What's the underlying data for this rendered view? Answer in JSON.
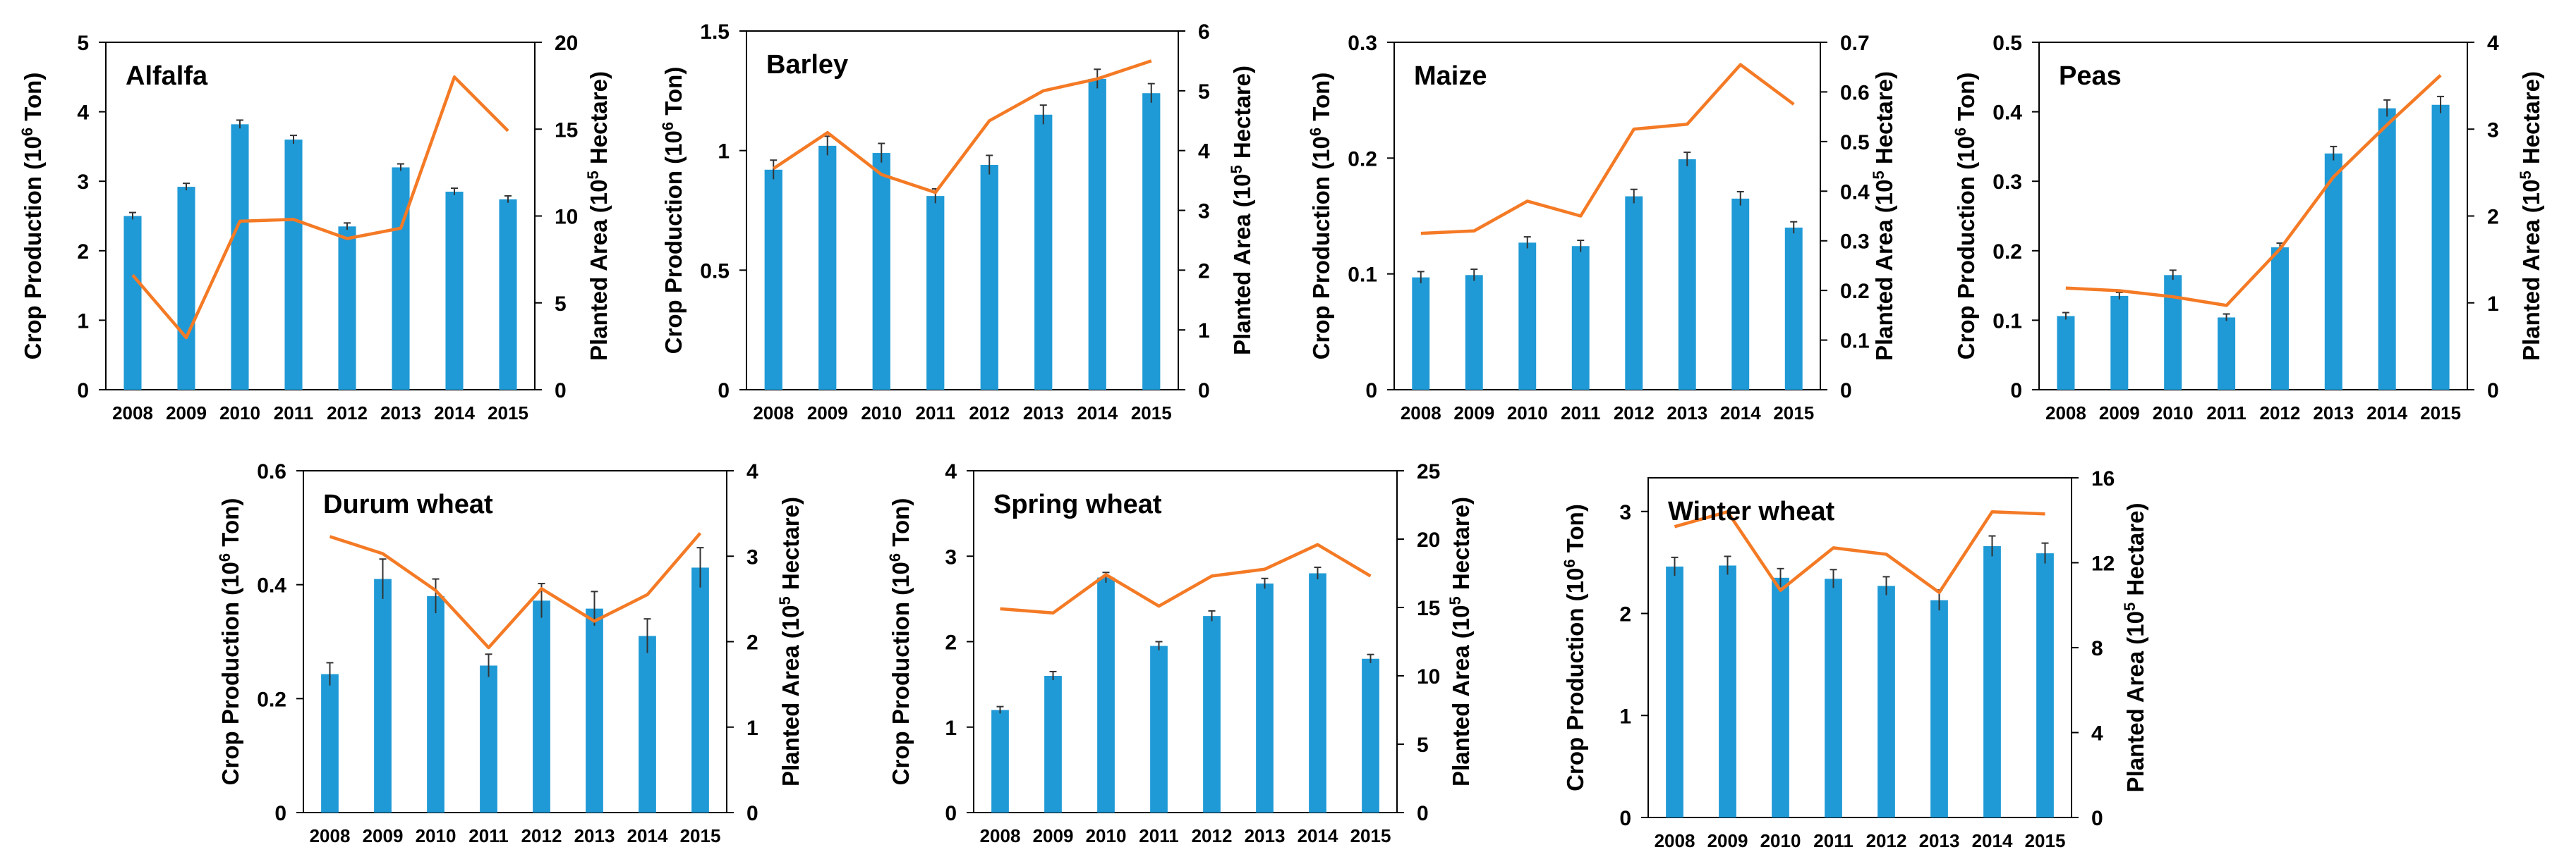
{
  "chart_data": [
    {
      "type": "bar",
      "title": "Alfalfa",
      "categories": [
        "2008",
        "2009",
        "2010",
        "2011",
        "2012",
        "2013",
        "2014",
        "2015"
      ],
      "ylabel_left": {
        "pre": "Crop Production (10",
        "sup": "6",
        "post": " Ton)"
      },
      "ylabel_right": {
        "pre": "Planted Area (10",
        "sup": "5",
        "post": " Hectare)"
      },
      "ylim": [
        0,
        5
      ],
      "yticks": [
        0,
        1,
        2,
        3,
        4,
        5
      ],
      "ytick_labels": [
        "0",
        "1",
        "2",
        "3",
        "4",
        "5"
      ],
      "y2lim": [
        0,
        20
      ],
      "y2ticks": [
        0,
        5,
        10,
        15,
        20
      ],
      "y2tick_labels": [
        "0",
        "5",
        "10",
        "15",
        "20"
      ],
      "series": [
        {
          "name": "Crop Production",
          "kind": "bar",
          "color": "#1f9ad6",
          "values": [
            2.5,
            2.92,
            3.82,
            3.6,
            2.35,
            3.2,
            2.85,
            2.74
          ],
          "errors": [
            0.05,
            0.05,
            0.06,
            0.06,
            0.05,
            0.05,
            0.05,
            0.05
          ]
        },
        {
          "name": "Planted Area",
          "kind": "line",
          "axis": "right",
          "color": "#f47a25",
          "values": [
            6.6,
            3.0,
            9.7,
            9.8,
            8.7,
            9.3,
            18.0,
            14.9
          ]
        }
      ]
    },
    {
      "type": "bar",
      "title": "Barley",
      "categories": [
        "2008",
        "2009",
        "2010",
        "2011",
        "2012",
        "2013",
        "2014",
        "2015"
      ],
      "ylabel_left": {
        "pre": "Crop Production (10",
        "sup": "6",
        "post": " Ton)"
      },
      "ylabel_right": {
        "pre": "Planted Area (10",
        "sup": "5",
        "post": " Hectare)"
      },
      "ylim": [
        0,
        1.5
      ],
      "yticks": [
        0,
        0.5,
        1,
        1.5
      ],
      "ytick_labels": [
        "0",
        "0.5",
        "1",
        "1.5"
      ],
      "y2lim": [
        0,
        6
      ],
      "y2ticks": [
        0,
        1,
        2,
        3,
        4,
        5,
        6
      ],
      "y2tick_labels": [
        "0",
        "1",
        "2",
        "3",
        "4",
        "5",
        "6"
      ],
      "series": [
        {
          "name": "Crop Production",
          "kind": "bar",
          "color": "#1f9ad6",
          "values": [
            0.92,
            1.02,
            0.99,
            0.81,
            0.94,
            1.15,
            1.3,
            1.24
          ],
          "errors": [
            0.04,
            0.04,
            0.04,
            0.03,
            0.04,
            0.04,
            0.04,
            0.04
          ]
        },
        {
          "name": "Planted Area",
          "kind": "line",
          "axis": "right",
          "color": "#f47a25",
          "values": [
            3.7,
            4.3,
            3.6,
            3.3,
            4.5,
            5.0,
            5.2,
            5.5
          ]
        }
      ]
    },
    {
      "type": "bar",
      "title": "Maize",
      "categories": [
        "2008",
        "2009",
        "2010",
        "2011",
        "2012",
        "2013",
        "2014",
        "2015"
      ],
      "ylabel_left": {
        "pre": "Crop Production (10",
        "sup": "6",
        "post": " Ton)"
      },
      "ylabel_right": {
        "pre": "Planted Area (10",
        "sup": "5",
        "post": " Hectare)"
      },
      "ylim": [
        0,
        0.3
      ],
      "yticks": [
        0,
        0.1,
        0.2,
        0.3
      ],
      "ytick_labels": [
        "0",
        "0.1",
        "0.2",
        "0.3"
      ],
      "y2lim": [
        0,
        0.7
      ],
      "y2ticks": [
        0,
        0.1,
        0.2,
        0.3,
        0.4,
        0.5,
        0.6,
        0.7
      ],
      "y2tick_labels": [
        "0",
        "0.1",
        "0.2",
        "0.3",
        "0.4",
        "0.5",
        "0.6",
        "0.7"
      ],
      "series": [
        {
          "name": "Crop Production",
          "kind": "bar",
          "color": "#1f9ad6",
          "values": [
            0.097,
            0.099,
            0.127,
            0.124,
            0.167,
            0.199,
            0.165,
            0.14
          ],
          "errors": [
            0.005,
            0.005,
            0.005,
            0.005,
            0.006,
            0.006,
            0.006,
            0.005
          ]
        },
        {
          "name": "Planted Area",
          "kind": "line",
          "axis": "right",
          "color": "#f47a25",
          "values": [
            0.315,
            0.32,
            0.38,
            0.35,
            0.525,
            0.535,
            0.655,
            0.575
          ]
        }
      ]
    },
    {
      "type": "bar",
      "title": "Peas",
      "categories": [
        "2008",
        "2009",
        "2010",
        "2011",
        "2012",
        "2013",
        "2014",
        "2015"
      ],
      "ylabel_left": {
        "pre": "Crop Production (10",
        "sup": "6",
        "post": " Ton)"
      },
      "ylabel_right": {
        "pre": "Planted Area (10",
        "sup": "5",
        "post": " Hectare)"
      },
      "ylim": [
        0,
        0.5
      ],
      "yticks": [
        0,
        0.1,
        0.2,
        0.3,
        0.4,
        0.5
      ],
      "ytick_labels": [
        "0",
        "0.1",
        "0.2",
        "0.3",
        "0.4",
        "0.5"
      ],
      "y2lim": [
        0,
        4
      ],
      "y2ticks": [
        0,
        1,
        2,
        3,
        4
      ],
      "y2tick_labels": [
        "0",
        "1",
        "2",
        "3",
        "4"
      ],
      "series": [
        {
          "name": "Crop Production",
          "kind": "bar",
          "color": "#1f9ad6",
          "values": [
            0.106,
            0.135,
            0.165,
            0.104,
            0.205,
            0.34,
            0.405,
            0.41
          ],
          "errors": [
            0.005,
            0.005,
            0.007,
            0.005,
            0.006,
            0.01,
            0.012,
            0.012
          ]
        },
        {
          "name": "Planted Area",
          "kind": "line",
          "axis": "right",
          "color": "#f47a25",
          "values": [
            1.17,
            1.14,
            1.07,
            0.97,
            1.62,
            2.45,
            3.05,
            3.62
          ]
        }
      ]
    },
    {
      "type": "bar",
      "title": "Durum wheat",
      "categories": [
        "2008",
        "2009",
        "2010",
        "2011",
        "2012",
        "2013",
        "2014",
        "2015"
      ],
      "ylabel_left": {
        "pre": "Crop Production (10",
        "sup": "6",
        "post": " Ton)"
      },
      "ylabel_right": {
        "pre": "Planted Area (10",
        "sup": "5",
        "post": " Hectare)"
      },
      "ylim": [
        0,
        0.6
      ],
      "yticks": [
        0,
        0.2,
        0.4,
        0.6
      ],
      "ytick_labels": [
        "0",
        "0.2",
        "0.4",
        "0.6"
      ],
      "y2lim": [
        0,
        4
      ],
      "y2ticks": [
        0,
        1,
        2,
        3,
        4
      ],
      "y2tick_labels": [
        "0",
        "1",
        "2",
        "3",
        "4"
      ],
      "series": [
        {
          "name": "Crop Production",
          "kind": "bar",
          "color": "#1f9ad6",
          "values": [
            0.243,
            0.41,
            0.38,
            0.258,
            0.372,
            0.358,
            0.31,
            0.43
          ],
          "errors": [
            0.02,
            0.035,
            0.03,
            0.02,
            0.03,
            0.03,
            0.03,
            0.035
          ]
        },
        {
          "name": "Planted Area",
          "kind": "line",
          "axis": "right",
          "color": "#f47a25",
          "values": [
            3.23,
            3.03,
            2.6,
            1.93,
            2.62,
            2.24,
            2.55,
            3.27
          ]
        }
      ]
    },
    {
      "type": "bar",
      "title": "Spring wheat",
      "categories": [
        "2008",
        "2009",
        "2010",
        "2011",
        "2012",
        "2013",
        "2014",
        "2015"
      ],
      "ylabel_left": {
        "pre": "Crop Production (10",
        "sup": "6",
        "post": " Ton)"
      },
      "ylabel_right": {
        "pre": "Planted Area (10",
        "sup": "5",
        "post": " Hectare)"
      },
      "ylim": [
        0,
        4
      ],
      "yticks": [
        0,
        1,
        2,
        3,
        4
      ],
      "ytick_labels": [
        "0",
        "1",
        "2",
        "3",
        "4"
      ],
      "y2lim": [
        0,
        25
      ],
      "y2ticks": [
        0,
        5,
        10,
        15,
        20,
        25
      ],
      "y2tick_labels": [
        "0",
        "5",
        "10",
        "15",
        "20",
        "25"
      ],
      "series": [
        {
          "name": "Crop Production",
          "kind": "bar",
          "color": "#1f9ad6",
          "values": [
            1.2,
            1.6,
            2.75,
            1.95,
            2.3,
            2.68,
            2.8,
            1.8
          ],
          "errors": [
            0.04,
            0.05,
            0.06,
            0.05,
            0.06,
            0.06,
            0.07,
            0.05
          ]
        },
        {
          "name": "Planted Area",
          "kind": "line",
          "axis": "right",
          "color": "#f47a25",
          "values": [
            14.9,
            14.6,
            17.4,
            15.1,
            17.3,
            17.8,
            19.6,
            17.3
          ]
        }
      ]
    },
    {
      "type": "bar",
      "title": "Winter wheat",
      "categories": [
        "2008",
        "2009",
        "2010",
        "2011",
        "2012",
        "2013",
        "2014",
        "2015"
      ],
      "ylabel_left": {
        "pre": "Crop Production (10",
        "sup": "6",
        "post": " Ton)"
      },
      "ylabel_right": {
        "pre": "Planted Area (10",
        "sup": "5",
        "post": " Hectare)"
      },
      "ylim": [
        0,
        3.33
      ],
      "yticks": [
        0,
        1,
        2,
        3
      ],
      "ytick_labels": [
        "0",
        "1",
        "2",
        "3"
      ],
      "y2lim": [
        0,
        16
      ],
      "y2ticks": [
        0,
        4,
        8,
        12,
        16
      ],
      "y2tick_labels": [
        "0",
        "4",
        "8",
        "12",
        "16"
      ],
      "series": [
        {
          "name": "Crop Production",
          "kind": "bar",
          "color": "#1f9ad6",
          "values": [
            2.46,
            2.47,
            2.35,
            2.34,
            2.27,
            2.13,
            2.66,
            2.59
          ],
          "errors": [
            0.09,
            0.09,
            0.09,
            0.09,
            0.09,
            0.1,
            0.1,
            0.1
          ]
        },
        {
          "name": "Planted Area",
          "kind": "line",
          "axis": "right",
          "color": "#f47a25",
          "values": [
            13.7,
            14.4,
            10.7,
            12.7,
            12.4,
            10.6,
            14.4,
            14.3
          ]
        }
      ]
    }
  ]
}
